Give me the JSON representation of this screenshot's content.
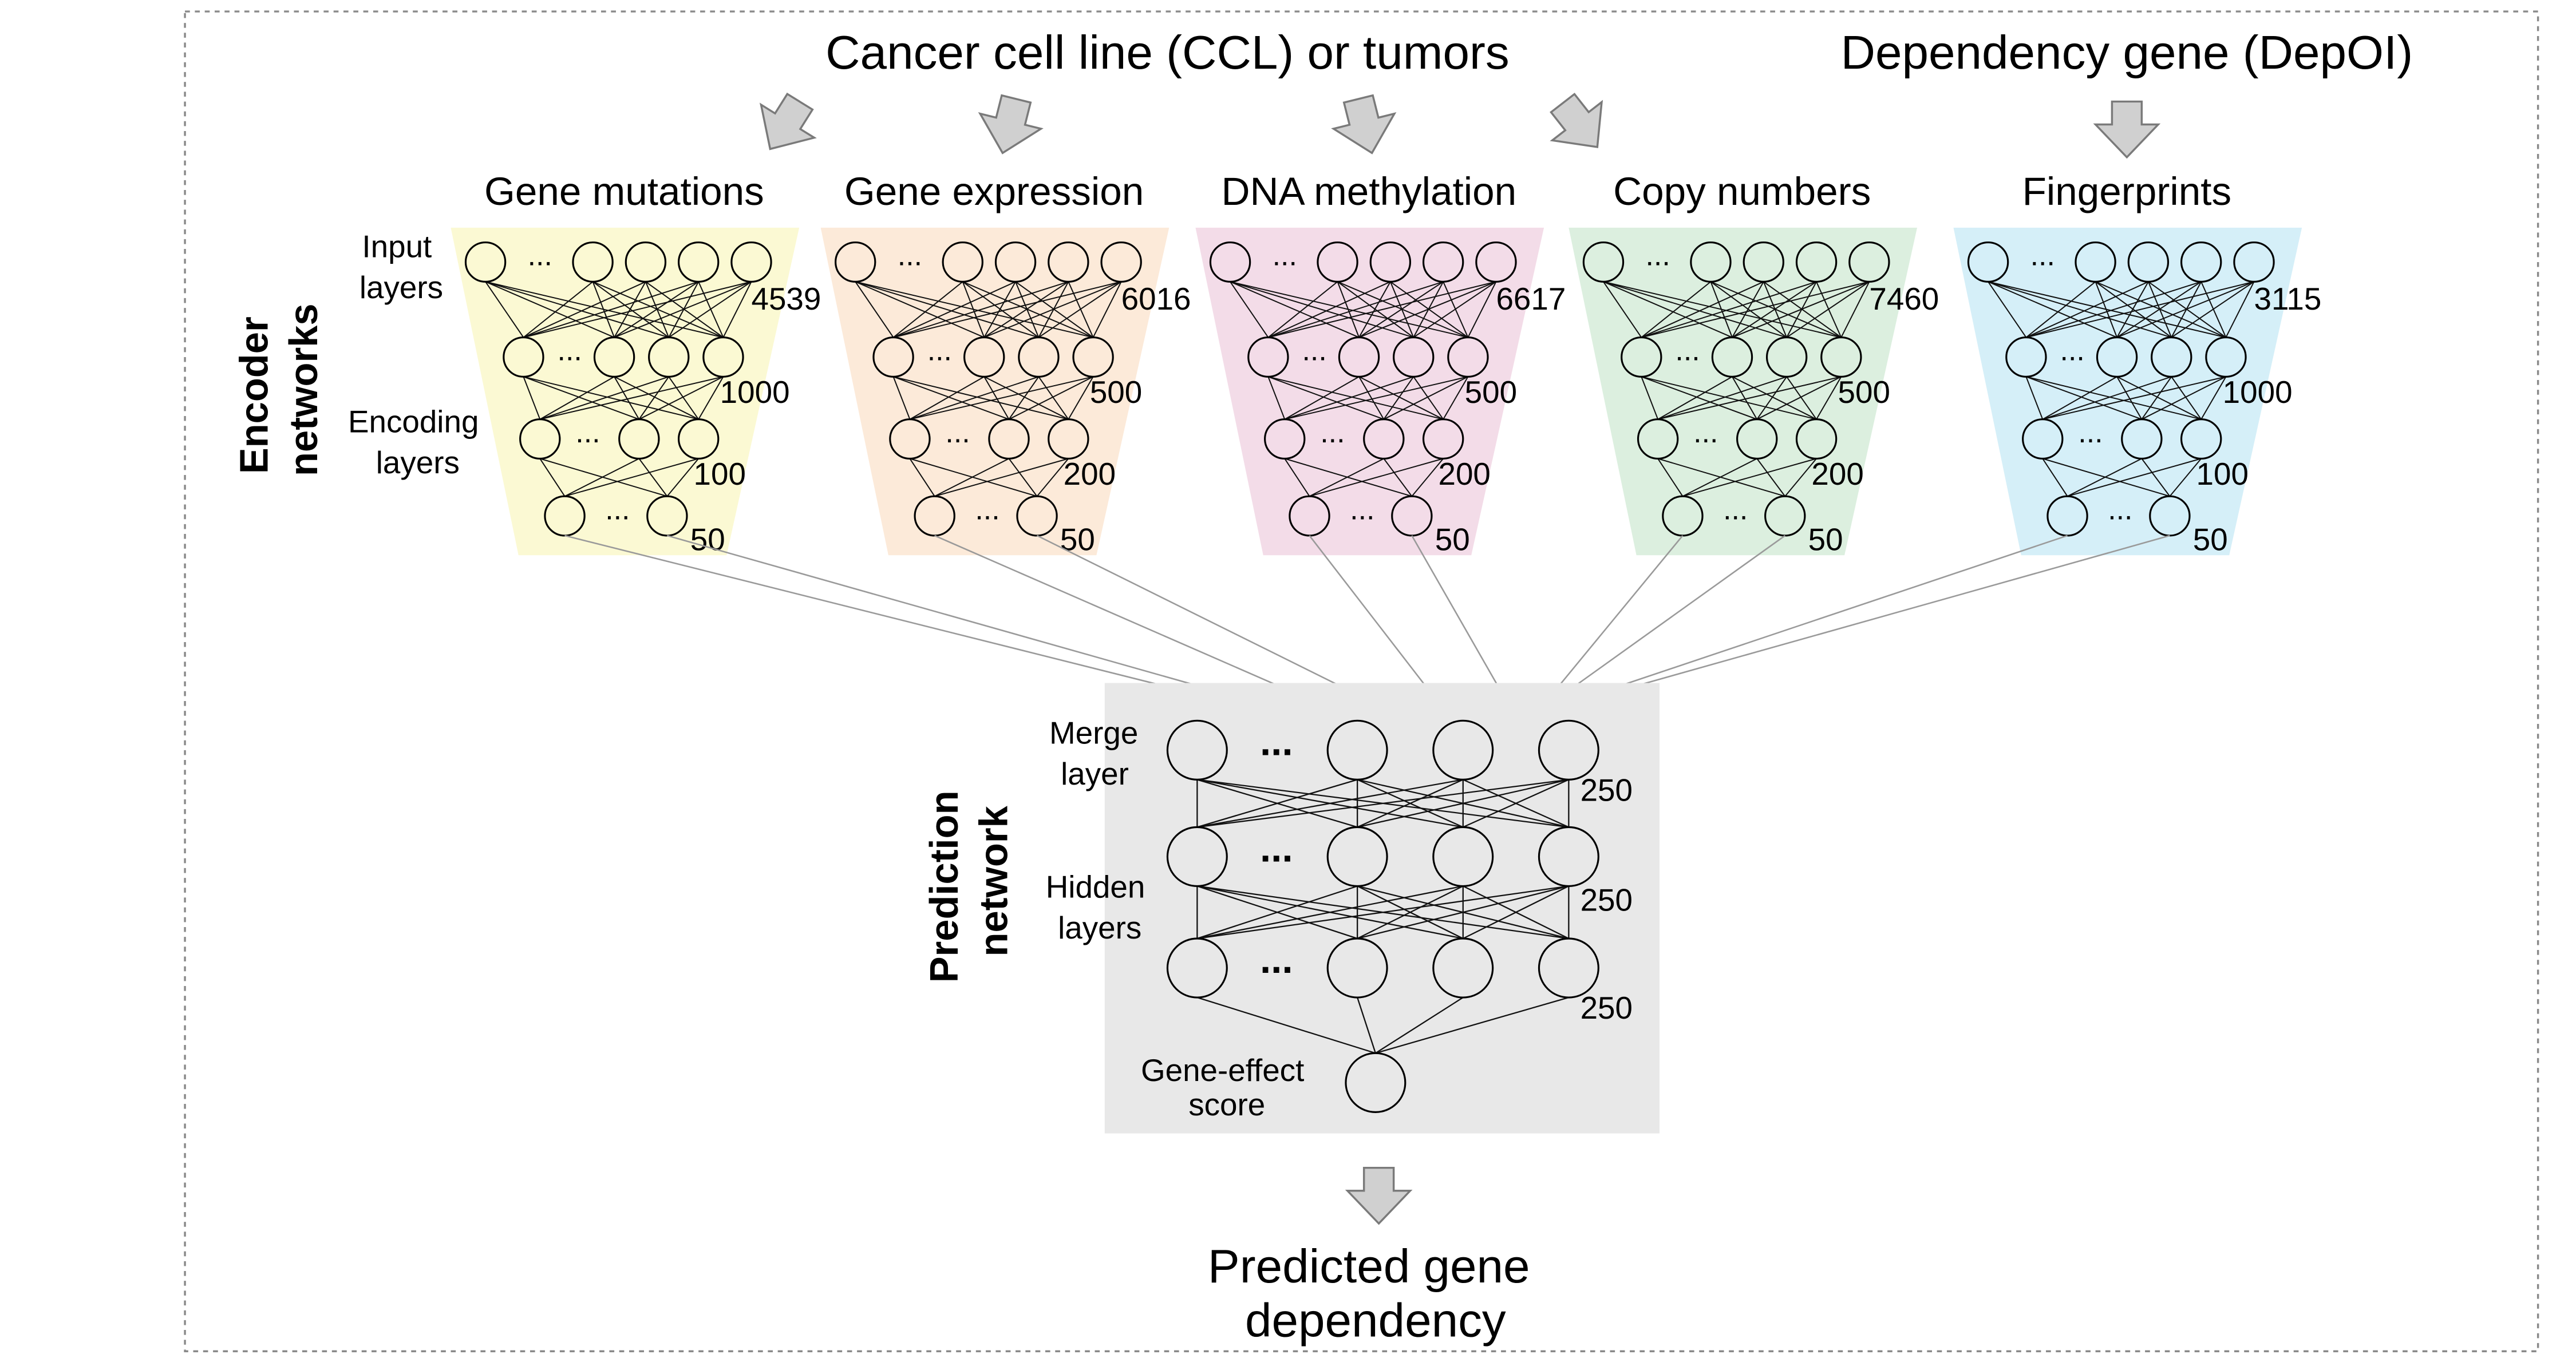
{
  "header": {
    "source": "Cancer cell line (CCL) or tumors",
    "dependency": "Dependency gene (DepOI)"
  },
  "encoder": {
    "section_line1": "Encoder",
    "section_line2": "networks",
    "input_layers_line1": "Input",
    "input_layers_line2": "layers",
    "encoding_layers_line1": "Encoding",
    "encoding_layers_line2": "layers",
    "ellipsis": "...",
    "networks": [
      {
        "title": "Gene mutations",
        "color": "#fbf9d3",
        "input_size": "4539",
        "layer_sizes": [
          "1000",
          "100",
          "50"
        ]
      },
      {
        "title": "Gene expression",
        "color": "#fcead9",
        "input_size": "6016",
        "layer_sizes": [
          "500",
          "200",
          "50"
        ]
      },
      {
        "title": "DNA methylation",
        "color": "#f3dce8",
        "input_size": "6617",
        "layer_sizes": [
          "500",
          "200",
          "50"
        ]
      },
      {
        "title": "Copy numbers",
        "color": "#dcefdf",
        "input_size": "7460",
        "layer_sizes": [
          "500",
          "200",
          "50"
        ]
      },
      {
        "title": "Fingerprints",
        "color": "#d5eff8",
        "input_size": "3115",
        "layer_sizes": [
          "1000",
          "100",
          "50"
        ]
      }
    ]
  },
  "prediction": {
    "section_line1": "Prediction",
    "section_line2": "network",
    "background": "#e8e8e8",
    "merge_line1": "Merge",
    "merge_line2": "layer",
    "hidden_line1": "Hidden",
    "hidden_line2": "layers",
    "output_line1": "Gene-effect",
    "output_line2": "score",
    "ellipsis": "...",
    "layer_sizes": [
      "250",
      "250",
      "250"
    ]
  },
  "output": {
    "line1": "Predicted gene",
    "line2": "dependency"
  },
  "style": {
    "arrow_fill": "#d0d0d0",
    "arrow_stroke": "#7a7a7a",
    "border_color": "#8a8a8a"
  }
}
